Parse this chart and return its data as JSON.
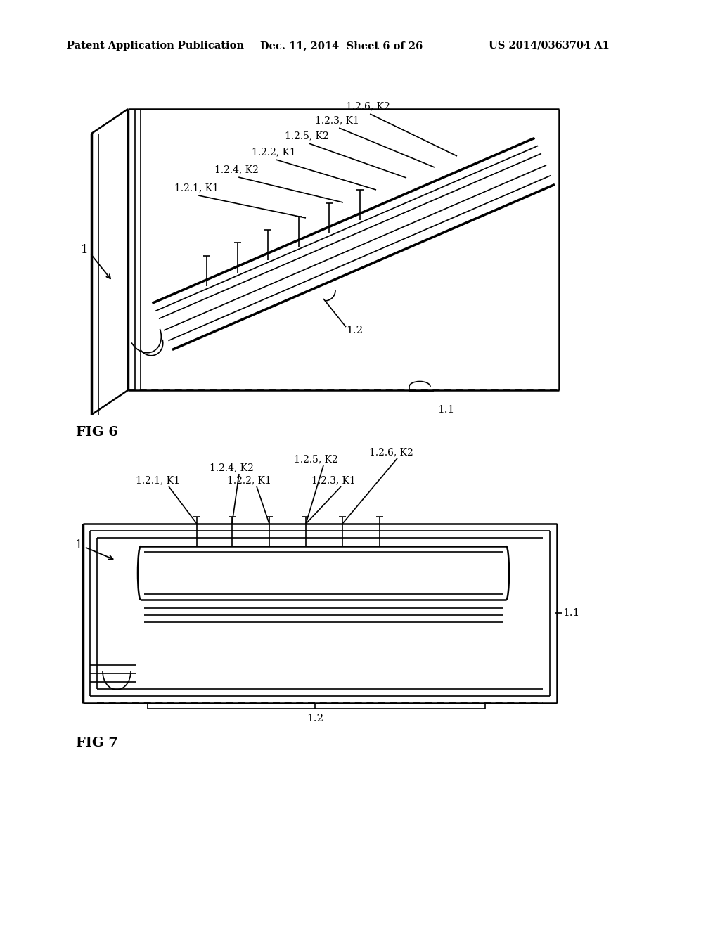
{
  "bg_color": "#ffffff",
  "header_left": "Patent Application Publication",
  "header_mid": "Dec. 11, 2014  Sheet 6 of 26",
  "header_right": "US 2014/0363704 A1",
  "fig6_label": "FIG 6",
  "fig7_label": "FIG 7",
  "fig6_labels": [
    [
      "1.2.6, K2",
      492,
      158,
      650,
      222
    ],
    [
      "1.2.3, K1",
      448,
      178,
      618,
      238
    ],
    [
      "1.2.5, K2",
      405,
      200,
      578,
      253
    ],
    [
      "1.2.2, K1",
      358,
      223,
      535,
      270
    ],
    [
      "1.2.4, K2",
      305,
      248,
      488,
      288
    ],
    [
      "1.2.1, K1",
      248,
      274,
      435,
      310
    ]
  ],
  "fig7_row1_labels": [
    [
      "1.2.4, K2",
      298,
      672
    ],
    [
      "1.2.5, K2",
      418,
      660
    ],
    [
      "1.2.6, K2",
      525,
      650
    ]
  ],
  "fig7_row2_labels": [
    [
      "1.2.1, K1",
      193,
      690
    ],
    [
      "1.2.2, K1",
      323,
      690
    ],
    [
      "1.2.3, K1",
      443,
      690
    ]
  ]
}
